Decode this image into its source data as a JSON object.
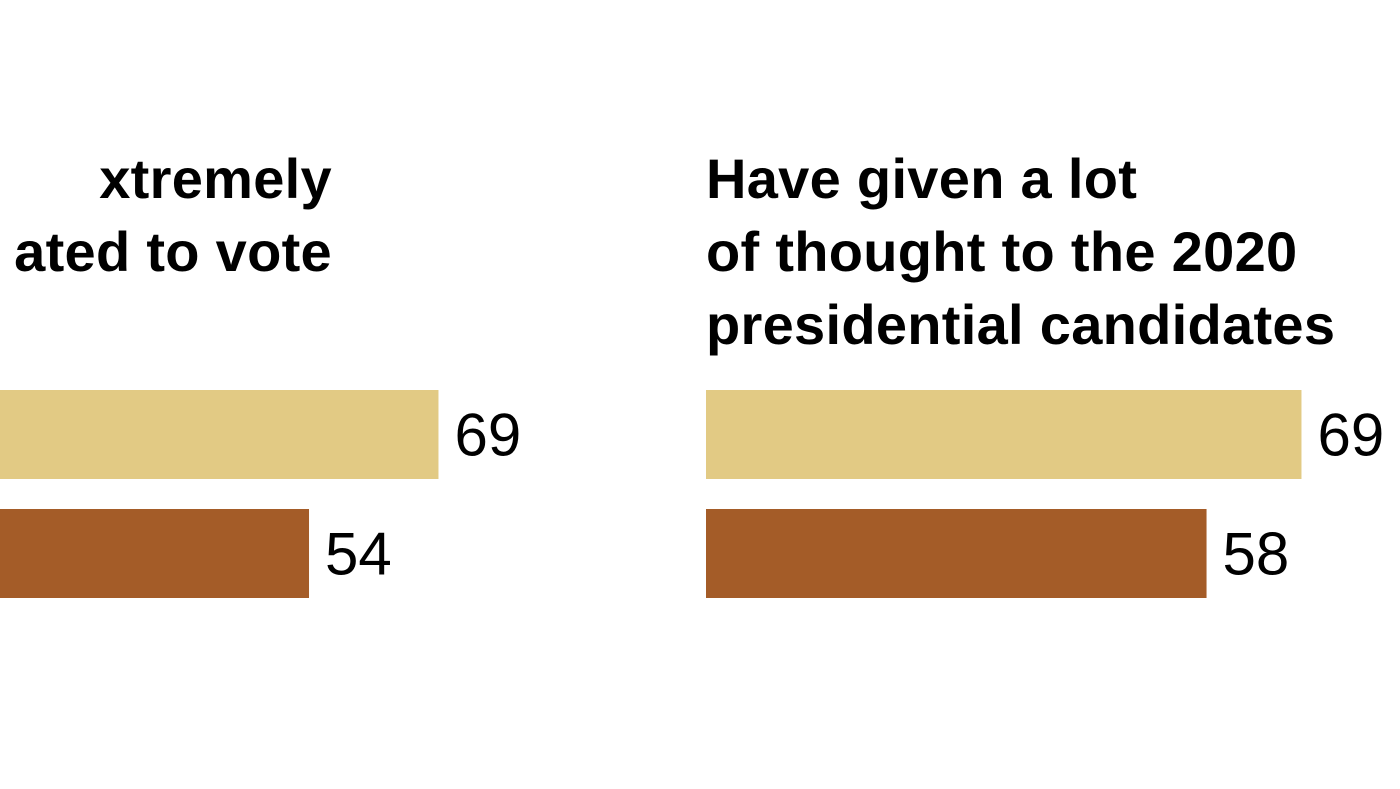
{
  "chart_data": [
    {
      "type": "bar",
      "orientation": "horizontal",
      "title_lines": [
        "xtremely",
        "ated to vote"
      ],
      "title": "xtremely ated to vote",
      "values": [
        69,
        54
      ],
      "value_labels": [
        "69",
        "54"
      ],
      "colors": [
        "#e2ca84",
        "#a45c28"
      ],
      "xlim": [
        0,
        100
      ]
    },
    {
      "type": "bar",
      "orientation": "horizontal",
      "title_lines": [
        "Have given a lot",
        "of thought to the 2020",
        "presidential candidates"
      ],
      "title": "Have given a lot of thought to the 2020 presidential candidates",
      "values": [
        69,
        58
      ],
      "value_labels": [
        "69",
        "58"
      ],
      "colors": [
        "#e2ca84",
        "#a45c28"
      ],
      "xlim": [
        0,
        100
      ]
    }
  ]
}
